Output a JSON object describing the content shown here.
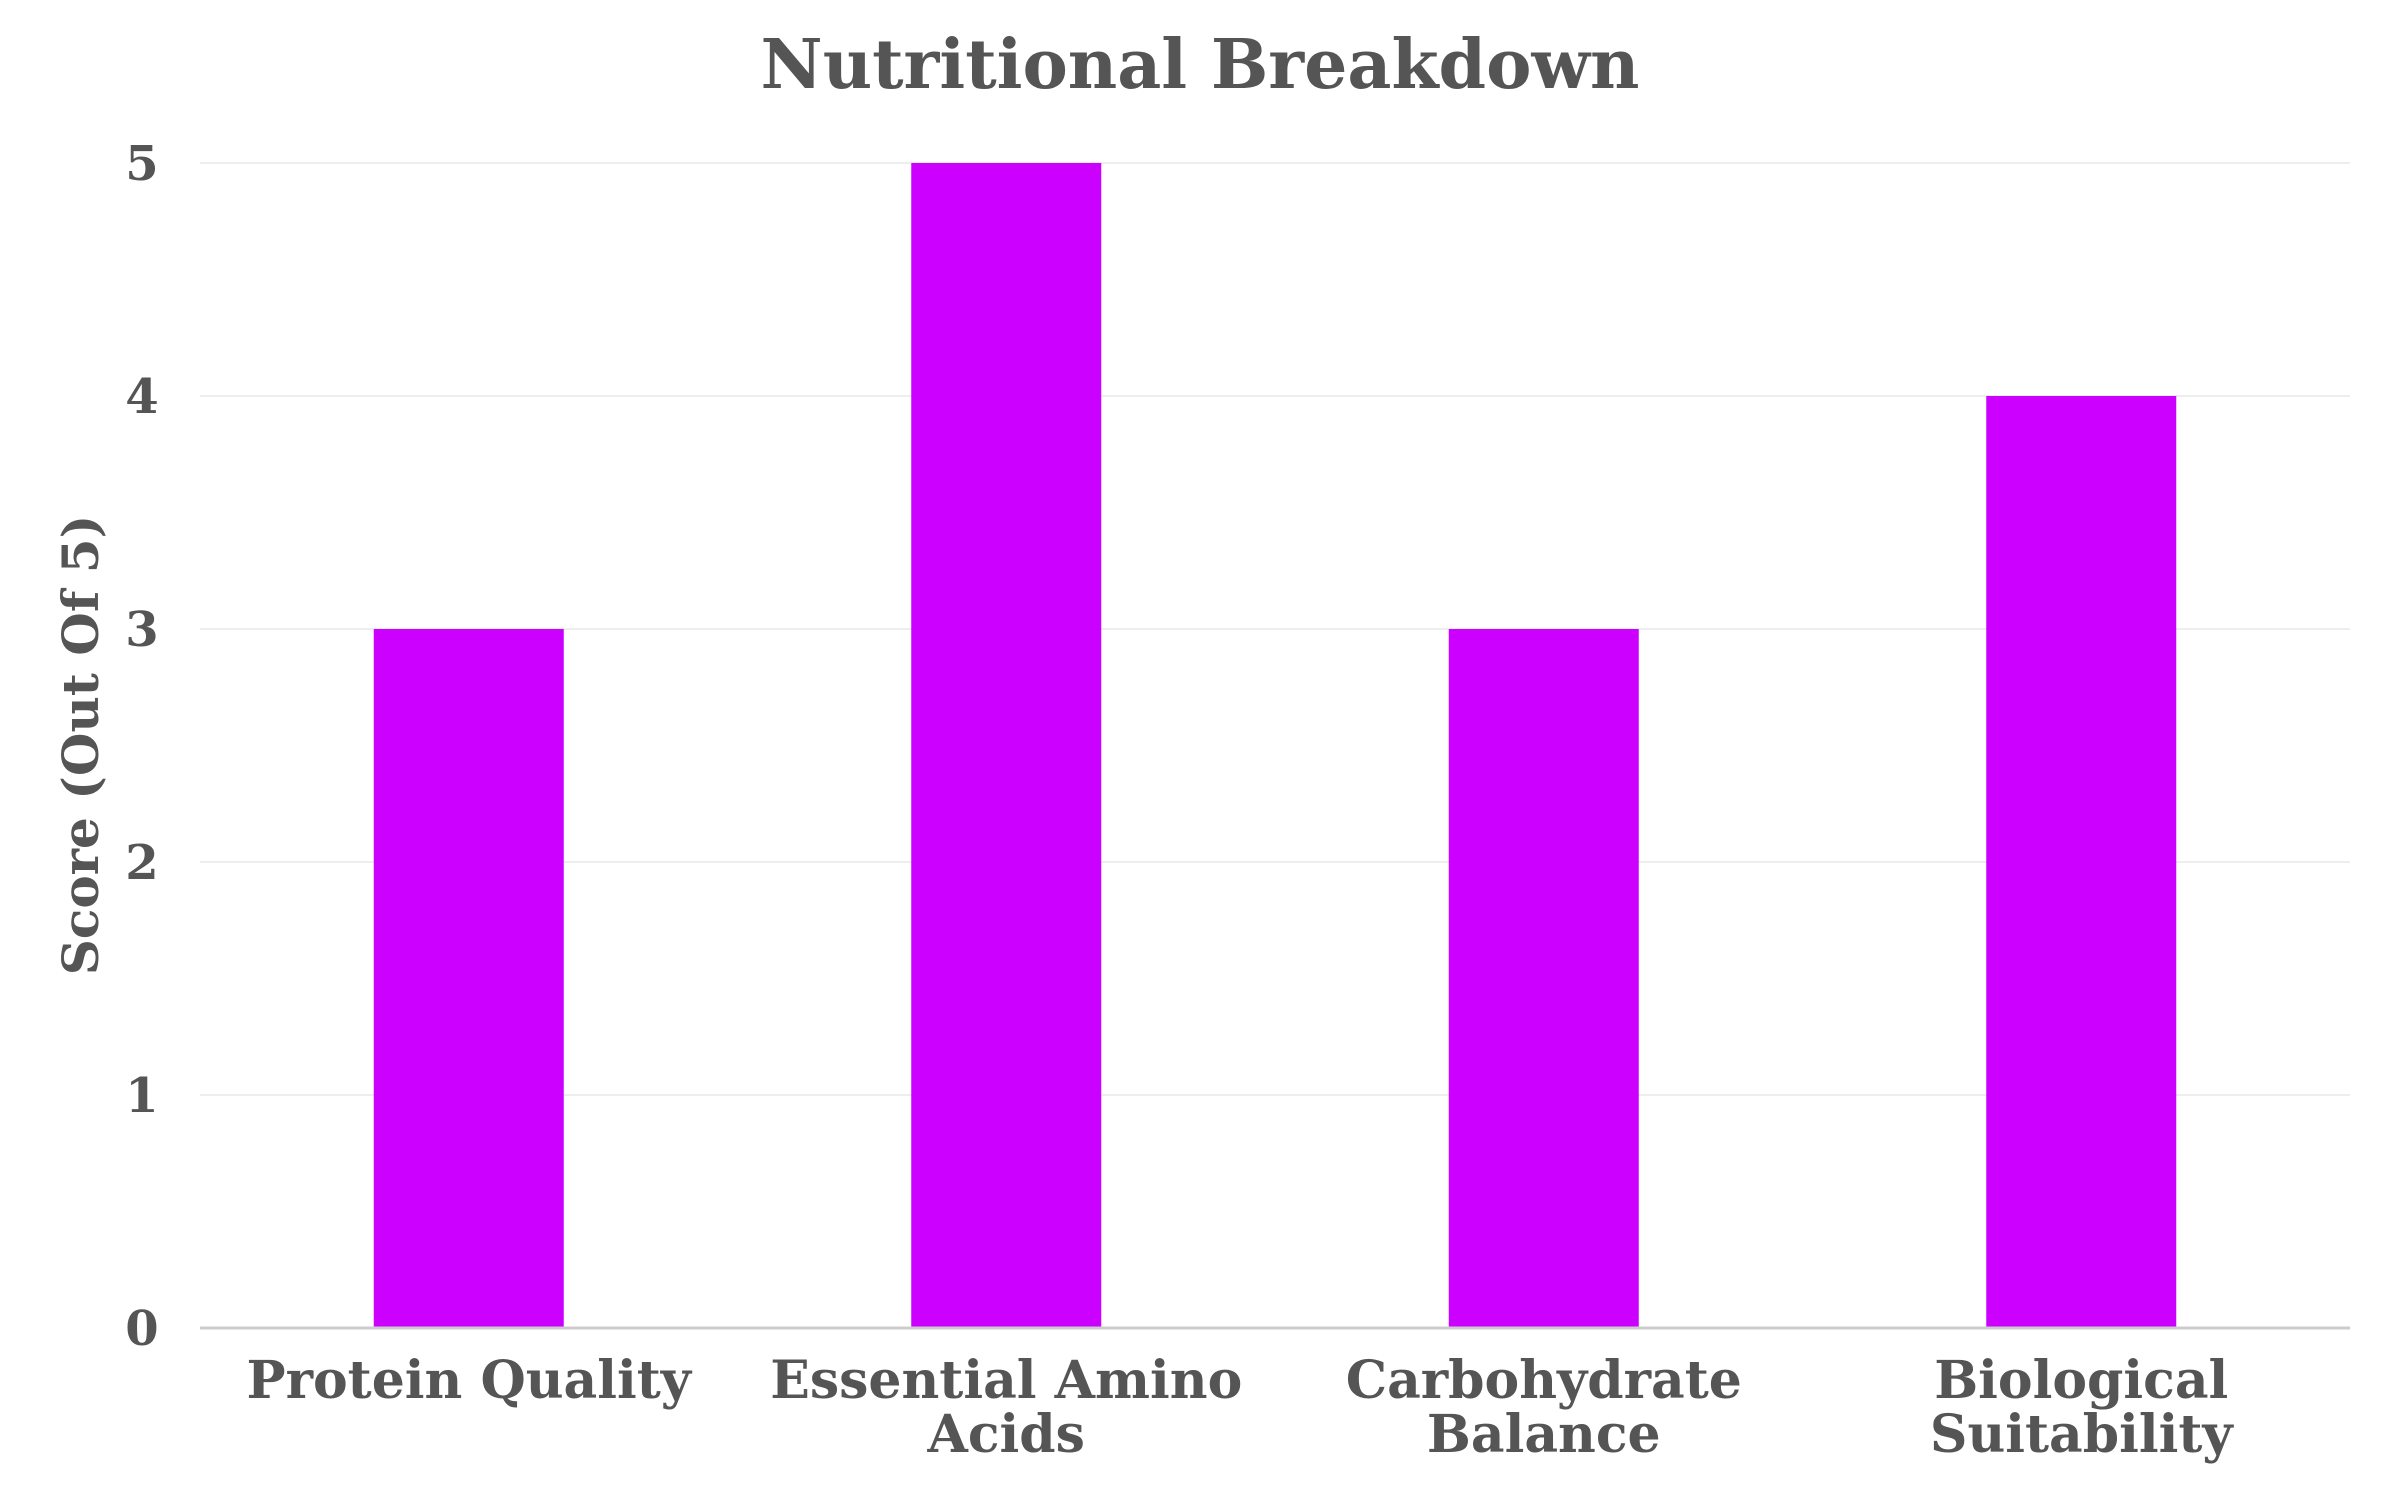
{
  "chart_data": {
    "type": "bar",
    "title": "Nutritional Breakdown",
    "xlabel": "",
    "ylabel": "Score (Out Of 5)",
    "categories": [
      [
        "Protein Quality"
      ],
      [
        "Essential Amino",
        "Acids"
      ],
      [
        "Carbohydrate",
        "Balance"
      ],
      [
        "Biological",
        "Suitability"
      ]
    ],
    "values": [
      3,
      5,
      3,
      4
    ],
    "ylim": [
      0,
      5
    ],
    "yticks": [
      0,
      1,
      2,
      3,
      4,
      5
    ],
    "grid": true,
    "legend": "none",
    "bar_color": "#cc00ff"
  }
}
